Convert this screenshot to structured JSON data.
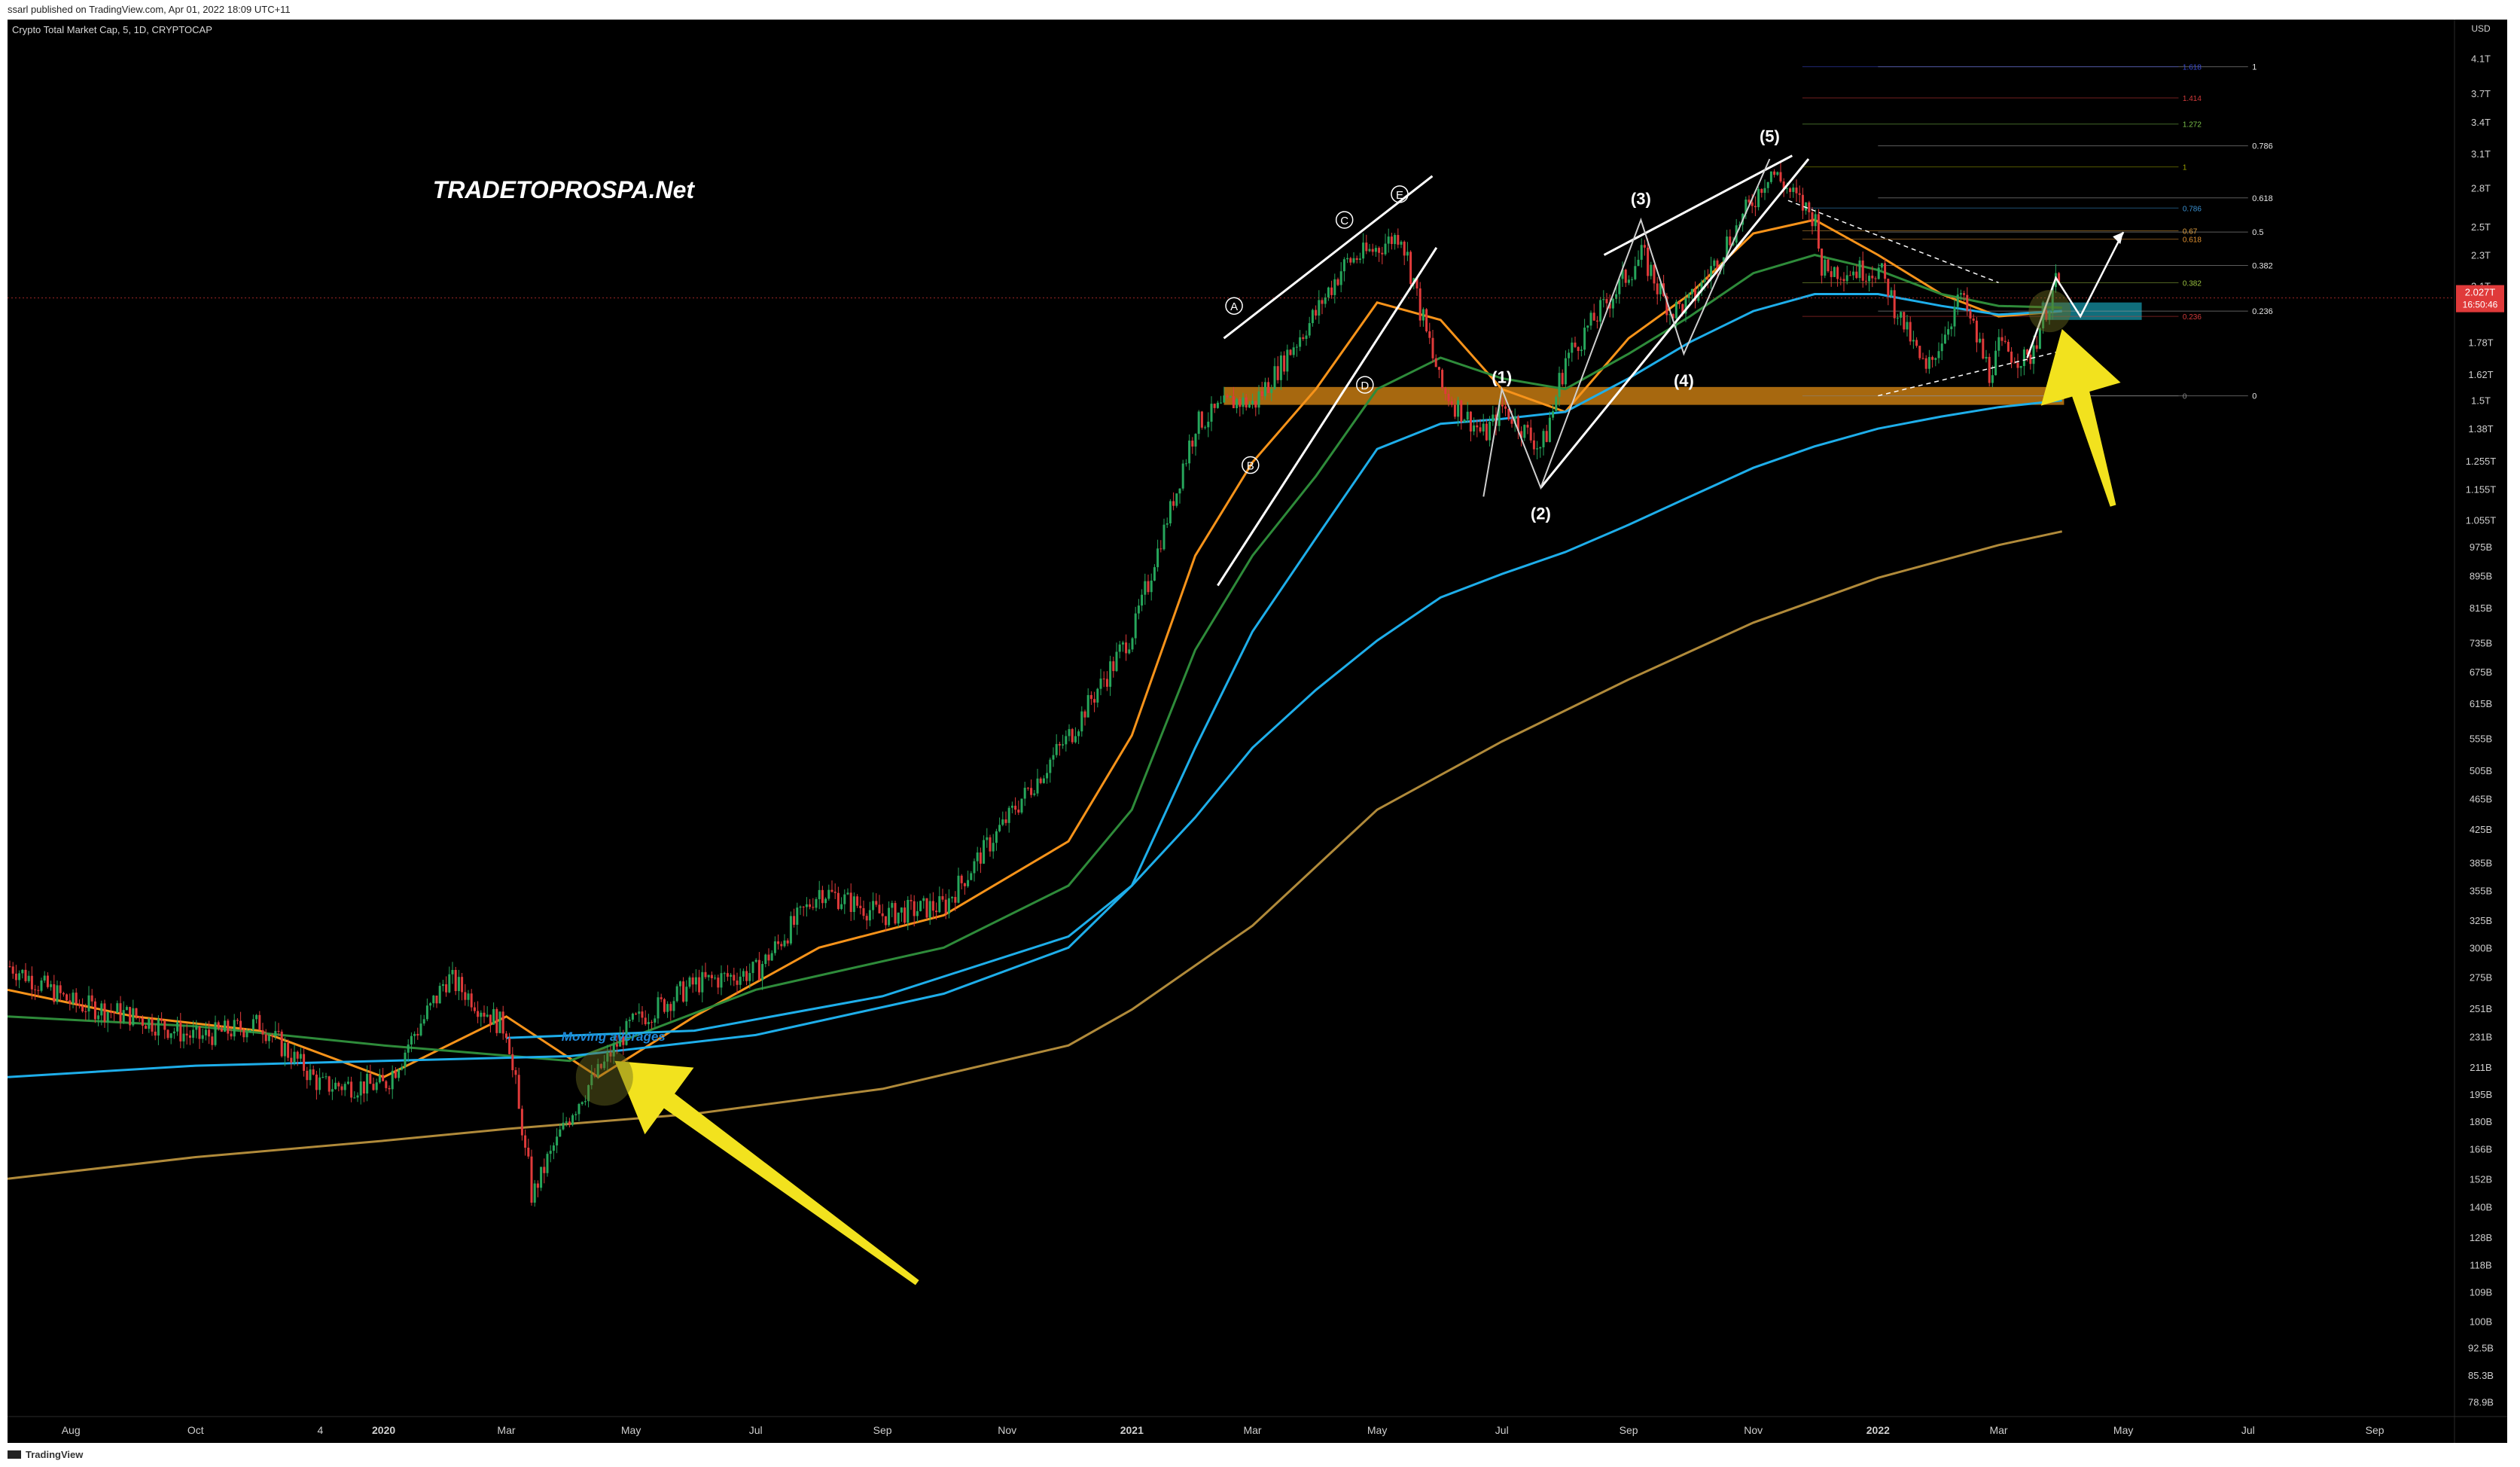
{
  "header": {
    "published_line": "ssarl published on TradingView.com, Apr 01, 2022 18:09 UTC+11",
    "symbol_line": "Crypto Total Market Cap, 5, 1D, CRYPTOCAP"
  },
  "footer": {
    "brand": "TradingView"
  },
  "colors": {
    "background": "#000000",
    "ma_orange": "#f7931a",
    "ma_green": "#2e8b3a",
    "ma_blue": "#1eaeea",
    "ma_gold": "#b08a3a",
    "candle_up": "#26a65b",
    "candle_down": "#e03a3a",
    "support_zone": "#c47a12",
    "target_zone": "#127a8a",
    "arrow": "#f2e21e",
    "trendline": "#ffffff"
  },
  "chart_data": {
    "type": "line",
    "title": "Crypto Total Market Cap, 5, 1D, CRYPTOCAP",
    "y_scale": "log",
    "ylim": [
      0.0781,
      4.3
    ],
    "y_unit_label": "USD",
    "y_tick_labels": [
      "4.1T",
      "3.7T",
      "3.4T",
      "3.1T",
      "2.8T",
      "2.5T",
      "2.3T",
      "2.1T",
      "1.78T",
      "1.62T",
      "1.5T",
      "1.38T",
      "1.255T",
      "1.155T",
      "1.055T",
      "975B",
      "895B",
      "815B",
      "735B",
      "675B",
      "615B",
      "555B",
      "505B",
      "465B",
      "425B",
      "385B",
      "355B",
      "325B",
      "300B",
      "275B",
      "251B",
      "231B",
      "211B",
      "195B",
      "180B",
      "166B",
      "152B",
      "140B",
      "128B",
      "118B",
      "109B",
      "100B",
      "92.5B",
      "85.3B",
      "78.9B"
    ],
    "y_tick_values": [
      4.1,
      3.7,
      3.4,
      3.1,
      2.8,
      2.5,
      2.3,
      2.1,
      1.78,
      1.62,
      1.5,
      1.38,
      1.255,
      1.155,
      1.055,
      0.975,
      0.895,
      0.815,
      0.735,
      0.675,
      0.615,
      0.555,
      0.505,
      0.465,
      0.425,
      0.385,
      0.355,
      0.325,
      0.3,
      0.275,
      0.251,
      0.231,
      0.211,
      0.195,
      0.18,
      0.166,
      0.152,
      0.14,
      0.128,
      0.118,
      0.109,
      0.1,
      0.0925,
      0.0853,
      0.0789
    ],
    "x_tick_labels": [
      "Aug",
      "Oct",
      "4",
      "2020",
      "Mar",
      "May",
      "Jul",
      "Sep",
      "Nov",
      "2021",
      "Mar",
      "May",
      "Jul",
      "Sep",
      "Nov",
      "2022",
      "Mar",
      "May",
      "Jul",
      "Sep"
    ],
    "x_tick_dates": [
      "2019-08-01",
      "2019-10-01",
      "2019-12-01",
      "2020-01-01",
      "2020-03-01",
      "2020-05-01",
      "2020-07-01",
      "2020-09-01",
      "2020-11-01",
      "2021-01-01",
      "2021-03-01",
      "2021-05-01",
      "2021-07-01",
      "2021-09-01",
      "2021-11-01",
      "2022-01-01",
      "2022-03-01",
      "2022-05-01",
      "2022-07-01",
      "2022-09-01"
    ],
    "x_range": [
      "2019-07-01",
      "2022-10-10"
    ],
    "grid": false,
    "current_price_label": "2.027T",
    "countdown_label": "16:50:46",
    "current_price_value": 2.027,
    "price_series": {
      "name": "",
      "dates": [
        "2019-07-01",
        "2019-08-01",
        "2019-09-01",
        "2019-10-01",
        "2019-11-01",
        "2019-12-01",
        "2020-01-01",
        "2020-02-01",
        "2020-03-01",
        "2020-03-13",
        "2020-04-01",
        "2020-05-01",
        "2020-06-01",
        "2020-07-01",
        "2020-08-01",
        "2020-09-01",
        "2020-10-01",
        "2020-11-01",
        "2020-12-01",
        "2021-01-01",
        "2021-02-01",
        "2021-02-20",
        "2021-03-01",
        "2021-04-01",
        "2021-04-15",
        "2021-05-01",
        "2021-05-12",
        "2021-06-01",
        "2021-06-22",
        "2021-07-01",
        "2021-07-20",
        "2021-08-01",
        "2021-09-07",
        "2021-09-21",
        "2021-10-01",
        "2021-11-09",
        "2021-12-01",
        "2021-12-04",
        "2022-01-01",
        "2022-01-24",
        "2022-02-10",
        "2022-02-24",
        "2022-03-01",
        "2022-03-15",
        "2022-03-29",
        "2022-04-01"
      ],
      "values": [
        0.285,
        0.255,
        0.245,
        0.23,
        0.24,
        0.2,
        0.2,
        0.275,
        0.235,
        0.145,
        0.185,
        0.24,
        0.27,
        0.28,
        0.355,
        0.33,
        0.34,
        0.44,
        0.56,
        0.76,
        1.4,
        1.5,
        1.48,
        1.95,
        2.25,
        2.35,
        2.45,
        1.55,
        1.35,
        1.47,
        1.3,
        1.7,
        2.3,
        1.95,
        2.0,
        2.95,
        2.55,
        2.2,
        2.2,
        1.62,
        2.05,
        1.62,
        1.75,
        1.68,
        2.15,
        2.027
      ]
    },
    "ma_series": [
      {
        "name": "",
        "color": "#f7931a",
        "dates": [
          "2019-07-01",
          "2019-09-01",
          "2019-11-01",
          "2020-01-01",
          "2020-03-01",
          "2020-04-15",
          "2020-06-01",
          "2020-08-01",
          "2020-10-01",
          "2020-12-01",
          "2021-01-01",
          "2021-02-01",
          "2021-03-01",
          "2021-04-01",
          "2021-05-01",
          "2021-06-01",
          "2021-07-01",
          "2021-08-01",
          "2021-09-01",
          "2021-10-01",
          "2021-11-01",
          "2021-12-01",
          "2022-01-01",
          "2022-02-01",
          "2022-03-01",
          "2022-04-01"
        ],
        "values": [
          0.265,
          0.245,
          0.235,
          0.205,
          0.245,
          0.205,
          0.245,
          0.3,
          0.33,
          0.41,
          0.56,
          0.95,
          1.25,
          1.55,
          2.0,
          1.9,
          1.55,
          1.45,
          1.8,
          2.05,
          2.45,
          2.55,
          2.3,
          2.05,
          1.92,
          1.95
        ]
      },
      {
        "name": "",
        "color": "#2e8b3a",
        "dates": [
          "2019-07-01",
          "2019-10-01",
          "2020-01-01",
          "2020-04-01",
          "2020-07-01",
          "2020-10-01",
          "2020-12-01",
          "2021-01-01",
          "2021-02-01",
          "2021-03-01",
          "2021-04-01",
          "2021-05-01",
          "2021-06-01",
          "2021-07-01",
          "2021-08-01",
          "2021-09-01",
          "2021-10-01",
          "2021-11-01",
          "2021-12-01",
          "2022-01-01",
          "2022-02-01",
          "2022-03-01",
          "2022-04-01"
        ],
        "values": [
          0.245,
          0.238,
          0.225,
          0.215,
          0.265,
          0.3,
          0.36,
          0.45,
          0.72,
          0.95,
          1.2,
          1.55,
          1.7,
          1.6,
          1.55,
          1.72,
          1.92,
          2.18,
          2.3,
          2.2,
          2.05,
          1.98,
          1.97
        ]
      },
      {
        "name": "",
        "color": "#1eaeea",
        "dates": [
          "2019-07-01",
          "2019-10-01",
          "2020-01-01",
          "2020-04-01",
          "2020-07-01",
          "2020-10-01",
          "2020-12-01",
          "2021-01-01",
          "2021-02-01",
          "2021-03-01",
          "2021-04-01",
          "2021-05-01",
          "2021-06-01",
          "2021-07-01",
          "2021-08-01",
          "2021-09-01",
          "2021-10-01",
          "2021-11-01",
          "2021-12-01",
          "2022-01-01",
          "2022-02-01",
          "2022-03-01",
          "2022-04-01"
        ],
        "values": [
          0.205,
          0.212,
          0.215,
          0.218,
          0.232,
          0.262,
          0.3,
          0.36,
          0.54,
          0.76,
          1.0,
          1.3,
          1.4,
          1.42,
          1.45,
          1.6,
          1.78,
          1.95,
          2.05,
          2.05,
          1.98,
          1.93,
          1.95
        ]
      },
      {
        "name": "",
        "color": "#1eaeea",
        "dates": [
          "2020-03-01",
          "2020-06-01",
          "2020-09-01",
          "2020-12-01",
          "2021-01-01",
          "2021-02-01",
          "2021-03-01",
          "2021-04-01",
          "2021-05-01",
          "2021-06-01",
          "2021-07-01",
          "2021-08-01",
          "2021-09-01",
          "2021-10-01",
          "2021-11-01",
          "2021-12-01",
          "2022-01-01",
          "2022-02-01",
          "2022-03-01",
          "2022-04-01"
        ],
        "values": [
          0.23,
          0.235,
          0.26,
          0.31,
          0.36,
          0.44,
          0.54,
          0.64,
          0.74,
          0.84,
          0.9,
          0.96,
          1.04,
          1.13,
          1.23,
          1.31,
          1.38,
          1.43,
          1.47,
          1.5
        ]
      },
      {
        "name": "",
        "color": "#b08a3a",
        "dates": [
          "2019-07-01",
          "2019-10-01",
          "2020-01-01",
          "2020-03-01",
          "2020-06-01",
          "2020-09-01",
          "2020-12-01",
          "2021-01-01",
          "2021-03-01",
          "2021-05-01",
          "2021-07-01",
          "2021-09-01",
          "2021-11-01",
          "2022-01-01",
          "2022-03-01",
          "2022-04-01"
        ],
        "values": [
          0.152,
          0.162,
          0.17,
          0.176,
          0.184,
          0.198,
          0.225,
          0.25,
          0.32,
          0.45,
          0.55,
          0.66,
          0.78,
          0.89,
          0.98,
          1.02
        ]
      }
    ],
    "fib_levels_right": [
      {
        "label": "1",
        "value": 4.0
      },
      {
        "label": "0.786",
        "value": 3.17
      },
      {
        "label": "0.618",
        "value": 2.72
      },
      {
        "label": "0.5",
        "value": 2.46
      },
      {
        "label": "0.382",
        "value": 2.23
      },
      {
        "label": "0.236",
        "value": 1.95
      },
      {
        "label": "0",
        "value": 1.52
      }
    ],
    "fib_levels_inner": [
      {
        "label": "1.618",
        "value": 4.0,
        "color": "#3a4ad0"
      },
      {
        "label": "1.414",
        "value": 3.65,
        "color": "#d03a3a"
      },
      {
        "label": "1.272",
        "value": 3.38,
        "color": "#7ac04a"
      },
      {
        "label": "1",
        "value": 2.98,
        "color": "#9aa000"
      },
      {
        "label": "0.786",
        "value": 2.64,
        "color": "#3a90d0"
      },
      {
        "label": "0.67",
        "value": 2.47,
        "color": "#e0a040"
      },
      {
        "label": "0.618",
        "value": 2.41,
        "color": "#e09030"
      },
      {
        "label": "0.382",
        "value": 2.12,
        "color": "#9ac040"
      },
      {
        "label": "0.236",
        "value": 1.92,
        "color": "#d03a3a"
      },
      {
        "label": "0",
        "value": 1.52,
        "color": "#888888"
      }
    ],
    "annotations": {
      "watermark": "TRADETOPROSPA.Net",
      "ma_note": "Moving averages",
      "wave_impulse": [
        {
          "label": "(1)",
          "date": "2021-07-01",
          "value": 1.55
        },
        {
          "label": "(2)",
          "date": "2021-07-20",
          "value": 1.13
        },
        {
          "label": "(3)",
          "date": "2021-09-07",
          "value": 2.62
        },
        {
          "label": "(4)",
          "date": "2021-09-28",
          "value": 1.67
        },
        {
          "label": "(5)",
          "date": "2021-11-09",
          "value": 3.15
        }
      ],
      "wave_corrective": [
        {
          "label": "A",
          "date": "2021-02-20",
          "value": 1.98
        },
        {
          "label": "B",
          "date": "2021-02-28",
          "value": 1.24
        },
        {
          "label": "C",
          "date": "2021-04-15",
          "value": 2.55
        },
        {
          "label": "D",
          "date": "2021-04-25",
          "value": 1.57
        },
        {
          "label": "E",
          "date": "2021-05-12",
          "value": 2.75
        }
      ]
    }
  }
}
